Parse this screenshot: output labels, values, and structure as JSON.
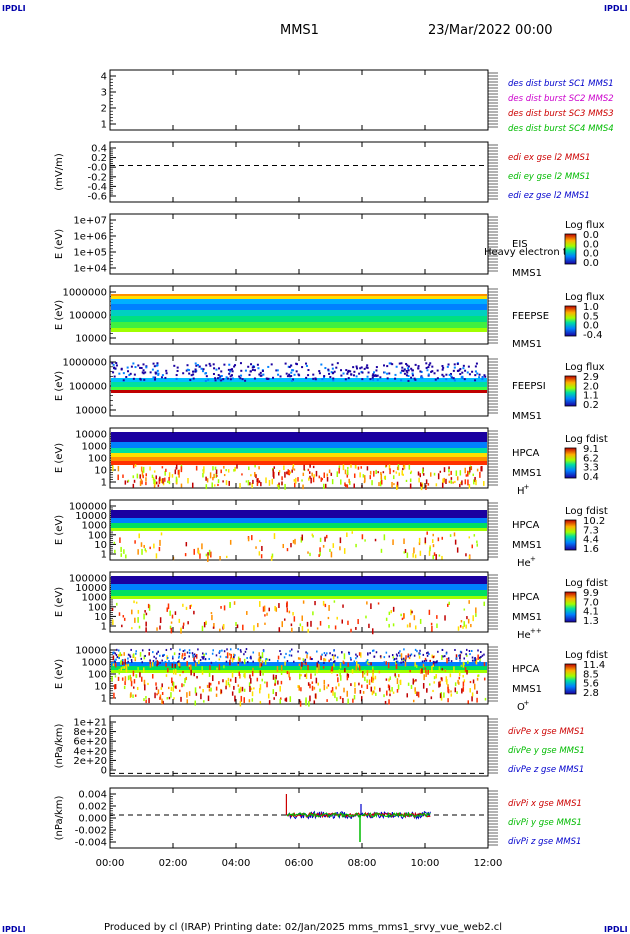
{
  "header": {
    "corner_left_top": "IPDLI",
    "corner_right_top": "IPDLI",
    "corner_left_bottom": "IPDLI",
    "corner_right_bottom": "IPDLI",
    "spacecraft": "MMS1",
    "datetime": "23/Mar/2022 00:00"
  },
  "footer": {
    "text": "Produced by cl (IRAP)   Printing date: 02/Jan/2025   mms_mms1_srvy_vue_web2.cl"
  },
  "colors": {
    "red": "#cc0000",
    "green": "#00bb00",
    "blue": "#0000cc",
    "magenta": "#cc00cc",
    "darkred": "#990000"
  },
  "chart_data": [
    {
      "type": "line",
      "ylabel": "",
      "ytick_labels": [
        "4",
        "3",
        "2",
        "1"
      ],
      "ylim": [
        0.5,
        4.5
      ],
      "legend": [
        {
          "label": "des dist burst SC1 MMS1",
          "color": "#0000cc"
        },
        {
          "label": "des dist burst SC2 MMS2",
          "color": "#cc00cc"
        },
        {
          "label": "des dist burst SC3 MMS3",
          "color": "#cc0000"
        },
        {
          "label": "des dist burst SC4 MMS4",
          "color": "#00bb00"
        }
      ]
    },
    {
      "type": "line",
      "ylabel": "(mV/m)",
      "ytick_labels": [
        "0.4",
        "0.2",
        "-0.0",
        "-0.2",
        "-0.4",
        "-0.6"
      ],
      "ylim": [
        -0.7,
        0.45
      ],
      "reference_line": 0,
      "legend": [
        {
          "label": "edi ex gse l2 MMS1",
          "color": "#cc0000"
        },
        {
          "label": "edi ey gse l2 MMS1",
          "color": "#00bb00"
        },
        {
          "label": "edi ez gse l2 MMS1",
          "color": "#0000cc"
        }
      ]
    },
    {
      "type": "heatmap",
      "ylabel": "E (eV)",
      "ytick_labels": [
        "1e+07",
        "1e+06",
        "1e+05",
        "1e+04"
      ],
      "scale": "log",
      "instrument": "EIS",
      "spacecraft": "MMS1",
      "overlay_text": "Heavy electron to",
      "colorbar": {
        "title": "Log flux",
        "labels": [
          "0.0",
          "0.0",
          "0.0",
          "0.0"
        ]
      }
    },
    {
      "type": "heatmap",
      "ylabel": "E (eV)",
      "ytick_labels": [
        "1000000",
        "100000",
        "10000"
      ],
      "scale": "log",
      "instrument": "FEEPSE",
      "spacecraft": "MMS1",
      "colorbar": {
        "title": "Log flux",
        "labels": [
          "1.0",
          "0.5",
          "0.0",
          "-0.4"
        ]
      }
    },
    {
      "type": "heatmap",
      "ylabel": "E (eV)",
      "ytick_labels": [
        "1000000",
        "100000",
        "10000"
      ],
      "scale": "log",
      "instrument": "FEEPSI",
      "spacecraft": "MMS1",
      "colorbar": {
        "title": "Log flux",
        "labels": [
          "2.9",
          "2.0",
          "1.1",
          "0.2"
        ]
      }
    },
    {
      "type": "heatmap",
      "ylabel": "E (eV)",
      "ytick_labels": [
        "10000",
        "1000",
        "100",
        "10",
        "1"
      ],
      "scale": "log",
      "instrument": "HPCA",
      "spacecraft": "MMS1",
      "species": "H",
      "species_sup": "+",
      "colorbar": {
        "title": "Log fdist",
        "labels": [
          "9.1",
          "6.2",
          "3.3",
          "0.4"
        ]
      }
    },
    {
      "type": "heatmap",
      "ylabel": "E (eV)",
      "ytick_labels": [
        "100000",
        "10000",
        "1000",
        "100",
        "10",
        "1"
      ],
      "scale": "log",
      "instrument": "HPCA",
      "spacecraft": "MMS1",
      "species": "He",
      "species_sup": "+",
      "colorbar": {
        "title": "Log fdist",
        "labels": [
          "10.2",
          "7.3",
          "4.4",
          "1.6"
        ]
      }
    },
    {
      "type": "heatmap",
      "ylabel": "E (eV)",
      "ytick_labels": [
        "100000",
        "10000",
        "1000",
        "100",
        "10",
        "1"
      ],
      "scale": "log",
      "instrument": "HPCA",
      "spacecraft": "MMS1",
      "species": "He",
      "species_sup": "++",
      "colorbar": {
        "title": "Log fdist",
        "labels": [
          "9.9",
          "7.0",
          "4.1",
          "1.3"
        ]
      }
    },
    {
      "type": "heatmap",
      "ylabel": "E (eV)",
      "ytick_labels": [
        "10000",
        "1000",
        "100",
        "10",
        "1"
      ],
      "scale": "log",
      "instrument": "HPCA",
      "spacecraft": "MMS1",
      "species": "O",
      "species_sup": "+",
      "colorbar": {
        "title": "Log fdist",
        "labels": [
          "11.4",
          "8.5",
          "5.6",
          "2.8"
        ]
      }
    },
    {
      "type": "line",
      "ylabel": "(nPa/km)",
      "ytick_labels": [
        "1e+21",
        "8e+20",
        "6e+20",
        "4e+20",
        "2e+20",
        "0"
      ],
      "ylim": [
        -5e+19,
        1.1e+21
      ],
      "reference_line": 0,
      "legend": [
        {
          "label": "divPe x gse MMS1",
          "color": "#cc0000"
        },
        {
          "label": "divPe y gse MMS1",
          "color": "#00bb00"
        },
        {
          "label": "divPe z gse MMS1",
          "color": "#0000cc"
        }
      ]
    },
    {
      "type": "line",
      "ylabel": "(nPa/km)",
      "ytick_labels": [
        "0.004",
        "0.002",
        "0.000",
        "-0.002",
        "-0.004"
      ],
      "ylim": [
        -0.0055,
        0.0045
      ],
      "reference_line": 0,
      "data_span_hours": [
        5.6,
        10.2
      ],
      "legend": [
        {
          "label": "divPi x gse MMS1",
          "color": "#cc0000"
        },
        {
          "label": "divPi y gse MMS1",
          "color": "#00bb00"
        },
        {
          "label": "divPi z gse MMS1",
          "color": "#0000cc"
        }
      ]
    }
  ],
  "xaxis": {
    "ticks": [
      "00:00",
      "02:00",
      "04:00",
      "06:00",
      "08:00",
      "10:00",
      "12:00"
    ],
    "range_hours": [
      0,
      12
    ]
  }
}
